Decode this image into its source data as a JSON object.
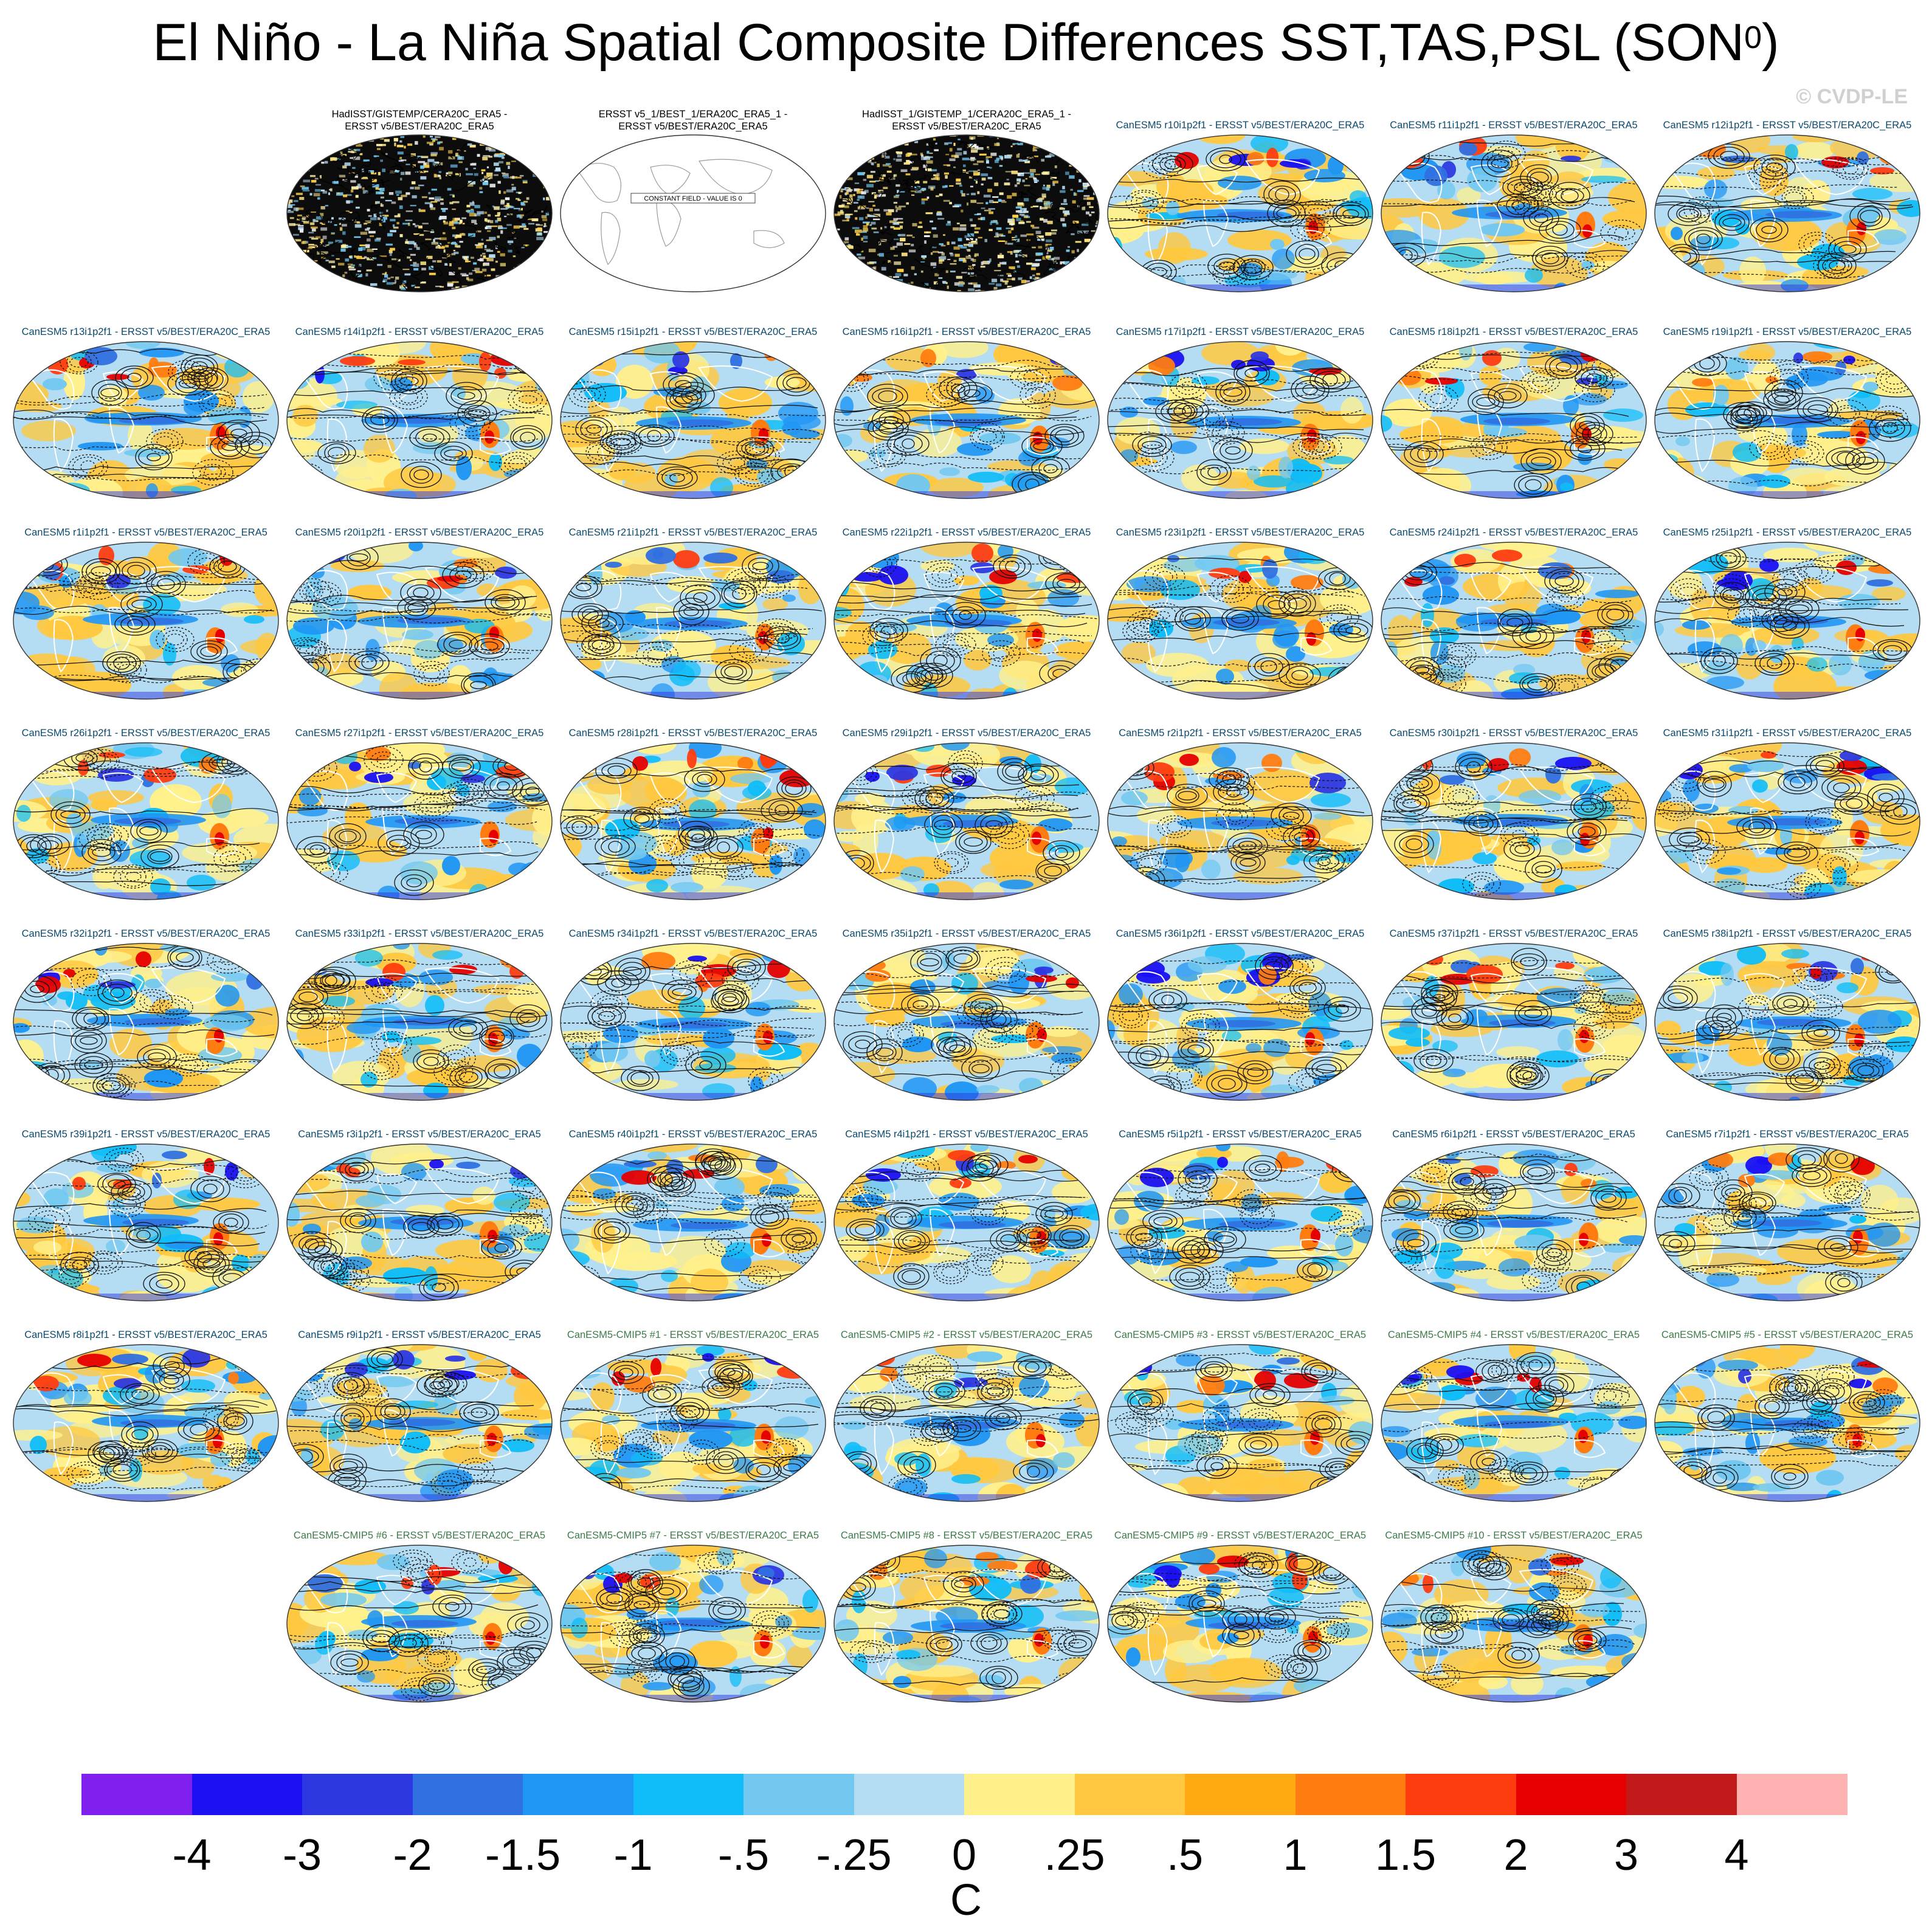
{
  "page": {
    "title_main": "El Niño - La Niña Spatial Composite Differences SST,TAS,PSL (SON",
    "title_sup": "0",
    "title_close": ")",
    "copyright": "© CVDP-LE"
  },
  "chart_data": {
    "type": "heatmap",
    "description_kind": "multi-panel global maps",
    "panels": [
      {
        "label_line1": "HadISST/GISTEMP/CERA20C_ERA5 -",
        "label_line2": "ERSST v5/BEST/ERA20C_ERA5",
        "kind": "obs",
        "style": "noise"
      },
      {
        "label_line1": "ERSST v5_1/BEST_1/ERA20C_ERA5_1 -",
        "label_line2": "ERSST v5/BEST/ERA20C_ERA5",
        "kind": "obs",
        "style": "constant",
        "note": "CONSTANT FIELD - VALUE IS 0"
      },
      {
        "label_line1": "HadISST_1/GISTEMP_1/CERA20C_ERA5_1 -",
        "label_line2": "ERSST v5/BEST/ERA20C_ERA5",
        "kind": "obs",
        "style": "noise"
      },
      {
        "label_line1": "CanESM5 r10i1p2f1 - ERSST v5/BEST/ERA20C_ERA5",
        "kind": "mod"
      },
      {
        "label_line1": "CanESM5 r11i1p2f1 - ERSST v5/BEST/ERA20C_ERA5",
        "kind": "mod"
      },
      {
        "label_line1": "CanESM5 r12i1p2f1 - ERSST v5/BEST/ERA20C_ERA5",
        "kind": "mod"
      },
      {
        "label_line1": "CanESM5 r13i1p2f1 - ERSST v5/BEST/ERA20C_ERA5",
        "kind": "mod"
      },
      {
        "label_line1": "CanESM5 r14i1p2f1 - ERSST v5/BEST/ERA20C_ERA5",
        "kind": "mod"
      },
      {
        "label_line1": "CanESM5 r15i1p2f1 - ERSST v5/BEST/ERA20C_ERA5",
        "kind": "mod"
      },
      {
        "label_line1": "CanESM5 r16i1p2f1 - ERSST v5/BEST/ERA20C_ERA5",
        "kind": "mod"
      },
      {
        "label_line1": "CanESM5 r17i1p2f1 - ERSST v5/BEST/ERA20C_ERA5",
        "kind": "mod"
      },
      {
        "label_line1": "CanESM5 r18i1p2f1 - ERSST v5/BEST/ERA20C_ERA5",
        "kind": "mod"
      },
      {
        "label_line1": "CanESM5 r19i1p2f1 - ERSST v5/BEST/ERA20C_ERA5",
        "kind": "mod"
      },
      {
        "label_line1": "CanESM5 r1i1p2f1 - ERSST v5/BEST/ERA20C_ERA5",
        "kind": "mod"
      },
      {
        "label_line1": "CanESM5 r20i1p2f1 - ERSST v5/BEST/ERA20C_ERA5",
        "kind": "mod"
      },
      {
        "label_line1": "CanESM5 r21i1p2f1 - ERSST v5/BEST/ERA20C_ERA5",
        "kind": "mod"
      },
      {
        "label_line1": "CanESM5 r22i1p2f1 - ERSST v5/BEST/ERA20C_ERA5",
        "kind": "mod"
      },
      {
        "label_line1": "CanESM5 r23i1p2f1 - ERSST v5/BEST/ERA20C_ERA5",
        "kind": "mod"
      },
      {
        "label_line1": "CanESM5 r24i1p2f1 - ERSST v5/BEST/ERA20C_ERA5",
        "kind": "mod"
      },
      {
        "label_line1": "CanESM5 r25i1p2f1 - ERSST v5/BEST/ERA20C_ERA5",
        "kind": "mod"
      },
      {
        "label_line1": "CanESM5 r26i1p2f1 - ERSST v5/BEST/ERA20C_ERA5",
        "kind": "mod"
      },
      {
        "label_line1": "CanESM5 r27i1p2f1 - ERSST v5/BEST/ERA20C_ERA5",
        "kind": "mod"
      },
      {
        "label_line1": "CanESM5 r28i1p2f1 - ERSST v5/BEST/ERA20C_ERA5",
        "kind": "mod"
      },
      {
        "label_line1": "CanESM5 r29i1p2f1 - ERSST v5/BEST/ERA20C_ERA5",
        "kind": "mod"
      },
      {
        "label_line1": "CanESM5 r2i1p2f1 - ERSST v5/BEST/ERA20C_ERA5",
        "kind": "mod"
      },
      {
        "label_line1": "CanESM5 r30i1p2f1 - ERSST v5/BEST/ERA20C_ERA5",
        "kind": "mod"
      },
      {
        "label_line1": "CanESM5 r31i1p2f1 - ERSST v5/BEST/ERA20C_ERA5",
        "kind": "mod"
      },
      {
        "label_line1": "CanESM5 r32i1p2f1 - ERSST v5/BEST/ERA20C_ERA5",
        "kind": "mod"
      },
      {
        "label_line1": "CanESM5 r33i1p2f1 - ERSST v5/BEST/ERA20C_ERA5",
        "kind": "mod"
      },
      {
        "label_line1": "CanESM5 r34i1p2f1 - ERSST v5/BEST/ERA20C_ERA5",
        "kind": "mod"
      },
      {
        "label_line1": "CanESM5 r35i1p2f1 - ERSST v5/BEST/ERA20C_ERA5",
        "kind": "mod"
      },
      {
        "label_line1": "CanESM5 r36i1p2f1 - ERSST v5/BEST/ERA20C_ERA5",
        "kind": "mod"
      },
      {
        "label_line1": "CanESM5 r37i1p2f1 - ERSST v5/BEST/ERA20C_ERA5",
        "kind": "mod"
      },
      {
        "label_line1": "CanESM5 r38i1p2f1 - ERSST v5/BEST/ERA20C_ERA5",
        "kind": "mod"
      },
      {
        "label_line1": "CanESM5 r39i1p2f1 - ERSST v5/BEST/ERA20C_ERA5",
        "kind": "mod"
      },
      {
        "label_line1": "CanESM5 r3i1p2f1 - ERSST v5/BEST/ERA20C_ERA5",
        "kind": "mod"
      },
      {
        "label_line1": "CanESM5 r40i1p2f1 - ERSST v5/BEST/ERA20C_ERA5",
        "kind": "mod"
      },
      {
        "label_line1": "CanESM5 r4i1p2f1 - ERSST v5/BEST/ERA20C_ERA5",
        "kind": "mod"
      },
      {
        "label_line1": "CanESM5 r5i1p2f1 - ERSST v5/BEST/ERA20C_ERA5",
        "kind": "mod"
      },
      {
        "label_line1": "CanESM5 r6i1p2f1 - ERSST v5/BEST/ERA20C_ERA5",
        "kind": "mod"
      },
      {
        "label_line1": "CanESM5 r7i1p2f1 - ERSST v5/BEST/ERA20C_ERA5",
        "kind": "mod"
      },
      {
        "label_line1": "CanESM5 r8i1p2f1 - ERSST v5/BEST/ERA20C_ERA5",
        "kind": "mod"
      },
      {
        "label_line1": "CanESM5 r9i1p2f1 - ERSST v5/BEST/ERA20C_ERA5",
        "kind": "mod"
      },
      {
        "label_line1": "CanESM5-CMIP5 #1 - ERSST v5/BEST/ERA20C_ERA5",
        "kind": "c5"
      },
      {
        "label_line1": "CanESM5-CMIP5 #2 - ERSST v5/BEST/ERA20C_ERA5",
        "kind": "c5"
      },
      {
        "label_line1": "CanESM5-CMIP5 #3 - ERSST v5/BEST/ERA20C_ERA5",
        "kind": "c5"
      },
      {
        "label_line1": "CanESM5-CMIP5 #4 - ERSST v5/BEST/ERA20C_ERA5",
        "kind": "c5"
      },
      {
        "label_line1": "CanESM5-CMIP5 #5 - ERSST v5/BEST/ERA20C_ERA5",
        "kind": "c5"
      },
      {
        "label_line1": "CanESM5-CMIP5 #6 - ERSST v5/BEST/ERA20C_ERA5",
        "kind": "c5"
      },
      {
        "label_line1": "CanESM5-CMIP5 #7 - ERSST v5/BEST/ERA20C_ERA5",
        "kind": "c5"
      },
      {
        "label_line1": "CanESM5-CMIP5 #8 - ERSST v5/BEST/ERA20C_ERA5",
        "kind": "c5"
      },
      {
        "label_line1": "CanESM5-CMIP5 #9 - ERSST v5/BEST/ERA20C_ERA5",
        "kind": "c5"
      },
      {
        "label_line1": "CanESM5-CMIP5 #10 - ERSST v5/BEST/ERA20C_ERA5",
        "kind": "c5"
      }
    ],
    "colorbar": {
      "colors": [
        "#8020ee",
        "#1a10f2",
        "#2e38e0",
        "#3070e0",
        "#2096f4",
        "#10bdf8",
        "#72c8f0",
        "#b4dcf2",
        "#fff08c",
        "#ffc840",
        "#ffaa10",
        "#ff7c10",
        "#ff3c10",
        "#e60000",
        "#c21a1a",
        "#ffb2b2"
      ],
      "labels": [
        "-4",
        "-3",
        "-2",
        "-1.5",
        "-1",
        "-.5",
        "-.25",
        "0",
        ".25",
        ".5",
        "1",
        "1.5",
        "2",
        "3",
        "4"
      ],
      "units": "C"
    }
  }
}
